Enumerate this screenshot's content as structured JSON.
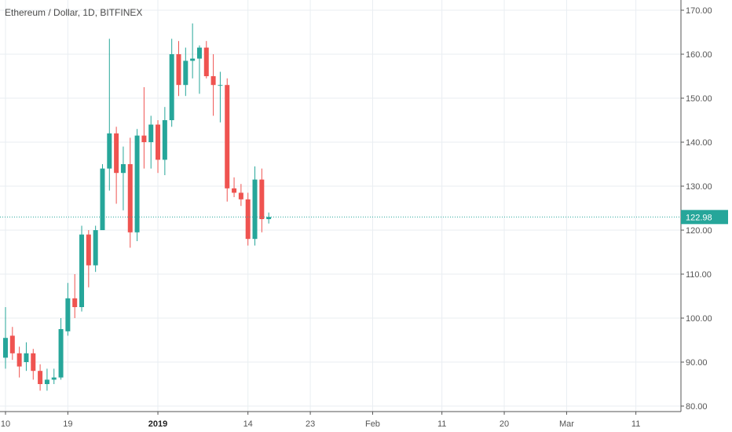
{
  "header": {
    "title": "Ethereum / Dollar, 1D, BITFINEX"
  },
  "colors": {
    "up": "#26a69a",
    "down": "#ef5350",
    "grid": "#e9eef2",
    "axis": "#555555",
    "price_line": "#26a69a"
  },
  "chart_data": {
    "type": "candlestick",
    "title": "Ethereum / Dollar, 1D, BITFINEX",
    "ylim": [
      78,
      173
    ],
    "y_ticks": [
      "170.00",
      "160.00",
      "150.00",
      "140.00",
      "130.00",
      "120.00",
      "110.00",
      "100.00",
      "90.00",
      "80.00"
    ],
    "x_ticks": [
      {
        "label": "10",
        "day": 0
      },
      {
        "label": "19",
        "day": 9
      },
      {
        "label": "2019",
        "day": 22,
        "bold": true
      },
      {
        "label": "14",
        "day": 35
      },
      {
        "label": "23",
        "day": 44
      },
      {
        "label": "Feb",
        "day": 53
      },
      {
        "label": "11",
        "day": 63
      },
      {
        "label": "20",
        "day": 72
      },
      {
        "label": "Mar",
        "day": 81
      },
      {
        "label": "11",
        "day": 91
      }
    ],
    "last_price": 122.98,
    "last_price_label": "122.98",
    "grid": true,
    "candles": [
      {
        "d": 0,
        "o": 91.0,
        "h": 102.5,
        "l": 88.5,
        "c": 95.5
      },
      {
        "d": 1,
        "o": 96.0,
        "h": 98.0,
        "l": 90.5,
        "c": 92.0
      },
      {
        "d": 2,
        "o": 92.0,
        "h": 93.5,
        "l": 86.5,
        "c": 89.0
      },
      {
        "d": 3,
        "o": 90.0,
        "h": 94.5,
        "l": 88.0,
        "c": 92.0
      },
      {
        "d": 4,
        "o": 92.0,
        "h": 93.0,
        "l": 86.0,
        "c": 88.0
      },
      {
        "d": 5,
        "o": 88.0,
        "h": 89.5,
        "l": 83.5,
        "c": 85.0
      },
      {
        "d": 6,
        "o": 85.0,
        "h": 88.5,
        "l": 83.5,
        "c": 86.0
      },
      {
        "d": 7,
        "o": 86.0,
        "h": 88.5,
        "l": 85.0,
        "c": 86.5
      },
      {
        "d": 8,
        "o": 86.5,
        "h": 100.0,
        "l": 86.0,
        "c": 97.5
      },
      {
        "d": 9,
        "o": 97.0,
        "h": 108.0,
        "l": 96.0,
        "c": 104.5
      },
      {
        "d": 10,
        "o": 104.5,
        "h": 110.0,
        "l": 100.0,
        "c": 102.5
      },
      {
        "d": 11,
        "o": 102.5,
        "h": 121.0,
        "l": 101.5,
        "c": 119.0
      },
      {
        "d": 12,
        "o": 119.0,
        "h": 120.0,
        "l": 107.0,
        "c": 112.0
      },
      {
        "d": 13,
        "o": 112.0,
        "h": 121.0,
        "l": 110.5,
        "c": 120.0
      },
      {
        "d": 14,
        "o": 120.0,
        "h": 135.0,
        "l": 120.0,
        "c": 134.0
      },
      {
        "d": 15,
        "o": 134.0,
        "h": 163.5,
        "l": 129.0,
        "c": 142.0
      },
      {
        "d": 16,
        "o": 142.0,
        "h": 143.5,
        "l": 126.0,
        "c": 133.0
      },
      {
        "d": 17,
        "o": 133.0,
        "h": 139.0,
        "l": 124.5,
        "c": 135.0
      },
      {
        "d": 18,
        "o": 135.0,
        "h": 141.0,
        "l": 116.0,
        "c": 119.5
      },
      {
        "d": 19,
        "o": 119.5,
        "h": 143.0,
        "l": 117.5,
        "c": 141.5
      },
      {
        "d": 20,
        "o": 141.5,
        "h": 152.5,
        "l": 134.0,
        "c": 140.0
      },
      {
        "d": 21,
        "o": 140.0,
        "h": 146.0,
        "l": 134.0,
        "c": 144.0
      },
      {
        "d": 22,
        "o": 144.0,
        "h": 145.0,
        "l": 133.0,
        "c": 136.0
      },
      {
        "d": 23,
        "o": 136.0,
        "h": 148.0,
        "l": 132.5,
        "c": 145.0
      },
      {
        "d": 24,
        "o": 145.0,
        "h": 163.5,
        "l": 143.5,
        "c": 160.0
      },
      {
        "d": 25,
        "o": 160.0,
        "h": 163.0,
        "l": 150.5,
        "c": 153.0
      },
      {
        "d": 26,
        "o": 153.0,
        "h": 161.5,
        "l": 150.5,
        "c": 158.5
      },
      {
        "d": 27,
        "o": 158.5,
        "h": 167.0,
        "l": 154.5,
        "c": 159.0
      },
      {
        "d": 28,
        "o": 159.0,
        "h": 162.0,
        "l": 151.0,
        "c": 161.5
      },
      {
        "d": 29,
        "o": 161.5,
        "h": 163.0,
        "l": 154.5,
        "c": 155.0
      },
      {
        "d": 30,
        "o": 155.0,
        "h": 160.0,
        "l": 146.0,
        "c": 153.0
      },
      {
        "d": 31,
        "o": 153.0,
        "h": 156.0,
        "l": 144.5,
        "c": 153.0
      },
      {
        "d": 32,
        "o": 153.0,
        "h": 154.5,
        "l": 126.5,
        "c": 129.5
      },
      {
        "d": 33,
        "o": 129.5,
        "h": 132.0,
        "l": 127.5,
        "c": 128.5
      },
      {
        "d": 34,
        "o": 128.5,
        "h": 130.5,
        "l": 125.5,
        "c": 127.0
      },
      {
        "d": 35,
        "o": 127.0,
        "h": 128.5,
        "l": 116.5,
        "c": 118.0
      },
      {
        "d": 36,
        "o": 118.0,
        "h": 134.5,
        "l": 116.5,
        "c": 131.5
      },
      {
        "d": 37,
        "o": 131.5,
        "h": 134.0,
        "l": 119.5,
        "c": 122.5
      },
      {
        "d": 38,
        "o": 122.5,
        "h": 124.0,
        "l": 121.5,
        "c": 123.0
      }
    ]
  }
}
